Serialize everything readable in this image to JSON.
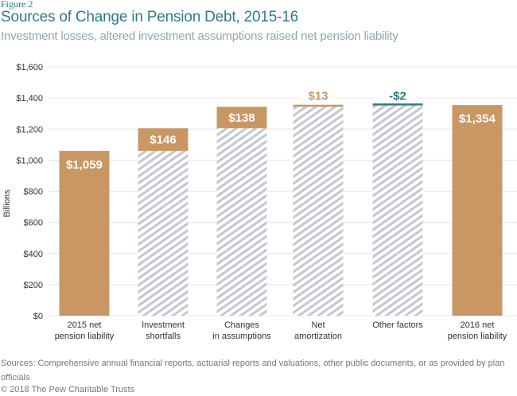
{
  "header": {
    "figure_label": "Figure 2",
    "title": "Sources of Change in Pension Debt, 2015-16",
    "subtitle": "Investment losses, altered investment assumptions raised net pension liability"
  },
  "footer": {
    "sources": "Sources: Comprehensive annual financial reports, actuarial reports and valuations, other public documents, or as provided by plan officials",
    "copyright": "© 2018 The Pew Charitable Trusts"
  },
  "colors": {
    "bar": "#c99763",
    "hatch_stripe": "#c2c7d0",
    "negative": "#2f7a8a",
    "grid": "#e6e6e6",
    "axis_text": "#333333",
    "title": "#2f7a8a"
  },
  "chart_data": {
    "type": "bar",
    "subtype": "waterfall",
    "title": "Sources of Change in Pension Debt, 2015-16",
    "subtitle": "Investment losses, altered investment assumptions raised net pension liability",
    "xlabel": "",
    "ylabel": "Billions",
    "ylim": [
      0,
      1600
    ],
    "yticks": [
      0,
      200,
      400,
      600,
      800,
      1000,
      1200,
      1400,
      1600
    ],
    "ytick_labels": [
      "$0",
      "$200",
      "$400",
      "$600",
      "$800",
      "$1,000",
      "$1,200",
      "$1,400",
      "$1,600"
    ],
    "grid": true,
    "legend": "none",
    "categories": [
      [
        "2015 net",
        "pension liability"
      ],
      [
        "Investment",
        "shortfalls"
      ],
      [
        "Changes",
        "in assumptions"
      ],
      [
        "Net",
        "amortization"
      ],
      [
        "Other factors"
      ],
      [
        "2016 net",
        "pension liability"
      ]
    ],
    "bars": [
      {
        "kind": "total",
        "base": 0,
        "value": 1059,
        "label": "$1,059"
      },
      {
        "kind": "delta",
        "base": 1059,
        "value": 146,
        "label": "$146"
      },
      {
        "kind": "delta",
        "base": 1205,
        "value": 138,
        "label": "$138"
      },
      {
        "kind": "delta",
        "base": 1343,
        "value": 13,
        "label": "$13"
      },
      {
        "kind": "delta",
        "base": 1356,
        "value": -2,
        "label": "-$2"
      },
      {
        "kind": "total",
        "base": 0,
        "value": 1354,
        "label": "$1,354"
      }
    ]
  }
}
